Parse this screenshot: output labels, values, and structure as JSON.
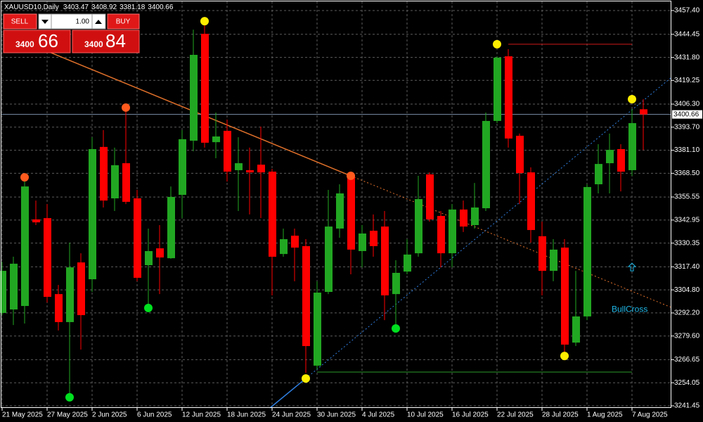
{
  "chart_data": {
    "type": "candlestick",
    "symbol": "XAUUSD10,Daily",
    "categories": [
      "21 May 2025",
      null,
      null,
      null,
      "27 May 2025",
      null,
      null,
      null,
      "2 Jun 2025",
      null,
      null,
      null,
      "6 Jun 2025",
      null,
      null,
      null,
      "12 Jun 2025",
      null,
      null,
      null,
      "18 Jun 2025",
      null,
      null,
      null,
      "24 Jun 2025",
      null,
      null,
      null,
      "30 Jun 2025",
      null,
      null,
      null,
      "4 Jul 2025",
      null,
      null,
      null,
      "10 Jul 2025",
      null,
      null,
      null,
      "16 Jul 2025",
      null,
      null,
      null,
      "22 Jul 2025",
      null,
      null,
      null,
      "28 Jul 2025",
      null,
      null,
      null,
      "1 Aug 2025",
      null,
      null,
      null,
      "7 Aug 2025",
      null
    ],
    "open": [
      3292.2,
      3294.1,
      3296.0,
      3343.3,
      3344.0,
      3302.5,
      3287.2,
      3319.8,
      3310.6,
      3382.9,
      3354.8,
      3374.0,
      3354.8,
      3318.3,
      3327.5,
      3322.1,
      3356.7,
      3386.3,
      3444.7,
      3385.5,
      3391.7,
      3370.2,
      3370.2,
      3373.2,
      3369.4,
      3324.4,
      3334.4,
      3328.7,
      3263.4,
      3303.7,
      3338.3,
      3367.1,
      3326.0,
      3337.1,
      3339.4,
      3302.5,
      3314.8,
      3324.8,
      3367.9,
      3345.2,
      3324.8,
      3348.7,
      3340.2,
      3349.4,
      3397.1,
      3432.4,
      3389.0,
      3369.0,
      3334.1,
      3315.2,
      3327.9,
      3276.0,
      3290.3,
      3362.5,
      3374.0,
      3381.7,
      3370.2,
      3403.47
    ],
    "high": [
      3320.2,
      3322.9,
      3367.1,
      3353.6,
      3351.7,
      3307.5,
      3330.6,
      3324.8,
      3388.2,
      3392.1,
      3382.5,
      3403.6,
      3359.4,
      3338.3,
      3340.2,
      3361.3,
      3392.1,
      3447.0,
      3451.6,
      3401.7,
      3397.8,
      3388.2,
      3382.5,
      3394.0,
      3370.9,
      3338.3,
      3338.3,
      3332.5,
      3309.5,
      3359.4,
      3362.5,
      3369.0,
      3340.2,
      3346.0,
      3347.9,
      3321.0,
      3332.5,
      3367.1,
      3369.0,
      3347.9,
      3351.7,
      3353.6,
      3363.2,
      3401.7,
      3432.4,
      3436.3,
      3390.2,
      3371.7,
      3342.1,
      3332.5,
      3332.5,
      3315.2,
      3362.5,
      3384.4,
      3390.2,
      3384.4,
      3403.6,
      3408.92
    ],
    "low": [
      3291.0,
      3285.6,
      3286.4,
      3340.2,
      3297.9,
      3282.6,
      3246.1,
      3272.2,
      3303.7,
      3349.8,
      3347.9,
      3351.7,
      3309.5,
      3294.9,
      3302.5,
      3321.8,
      3344.0,
      3380.5,
      3382.5,
      3376.7,
      3364.0,
      3347.9,
      3346.0,
      3344.0,
      3301.8,
      3322.9,
      3309.5,
      3259.5,
      3261.4,
      3302.5,
      3333.3,
      3313.3,
      3317.1,
      3322.9,
      3288.3,
      3285.6,
      3313.3,
      3322.9,
      3342.1,
      3317.1,
      3317.1,
      3336.4,
      3338.3,
      3347.9,
      3395.9,
      3382.5,
      3351.7,
      3330.6,
      3301.8,
      3309.5,
      3271.0,
      3274.1,
      3288.3,
      3357.5,
      3357.5,
      3358.6,
      3367.1,
      3381.18
    ],
    "close": [
      3315.2,
      3319.1,
      3361.3,
      3341.7,
      3301.0,
      3287.2,
      3317.1,
      3291.0,
      3381.7,
      3353.6,
      3372.9,
      3352.9,
      3311.4,
      3326.0,
      3322.5,
      3355.6,
      3387.1,
      3433.2,
      3385.2,
      3388.6,
      3369.4,
      3374.0,
      3369.0,
      3369.0,
      3322.9,
      3332.5,
      3327.9,
      3274.1,
      3303.3,
      3339.4,
      3357.5,
      3326.8,
      3335.6,
      3328.7,
      3301.8,
      3314.1,
      3324.1,
      3354.4,
      3343.3,
      3324.8,
      3348.7,
      3339.4,
      3349.8,
      3397.1,
      3431.7,
      3387.5,
      3368.6,
      3337.5,
      3315.2,
      3326.8,
      3274.9,
      3290.3,
      3361.0,
      3373.6,
      3381.3,
      3369.4,
      3395.9,
      3400.66
    ],
    "up_color": "#22a722",
    "down_color": "#ff0000",
    "ylim": [
      3240.3,
      3462.4
    ],
    "yticks": [
      {
        "value": 3457.4,
        "label": "3457.40"
      },
      {
        "value": 3444.45,
        "label": "3444.45"
      },
      {
        "value": 3431.8,
        "label": "3431.80"
      },
      {
        "value": 3419.25,
        "label": "3419.25"
      },
      {
        "value": 3406.3,
        "label": "3406.30"
      },
      {
        "value": 3393.7,
        "label": "3393.70"
      },
      {
        "value": 3381.1,
        "label": "3381.10"
      },
      {
        "value": 3368.5,
        "label": "3368.50"
      },
      {
        "value": 3355.55,
        "label": "3355.55"
      },
      {
        "value": 3342.95,
        "label": "3342.95"
      },
      {
        "value": 3330.35,
        "label": "3330.35"
      },
      {
        "value": 3317.4,
        "label": "3317.40"
      },
      {
        "value": 3304.8,
        "label": "3304.80"
      },
      {
        "value": 3292.2,
        "label": "3292.20"
      },
      {
        "value": 3279.6,
        "label": "3279.60"
      },
      {
        "value": 3266.65,
        "label": "3266.65"
      },
      {
        "value": 3254.05,
        "label": "3254.05"
      },
      {
        "value": 3241.45,
        "label": "3241.45"
      }
    ],
    "grid": true,
    "markers": [
      {
        "index": 18,
        "value": 3451.6,
        "color": "#ffee00"
      },
      {
        "index": 44,
        "value": 3439.0,
        "color": "#ffee00"
      },
      {
        "index": 56,
        "value": 3409.0,
        "color": "#ffee00"
      },
      {
        "index": 27,
        "value": 3256.4,
        "color": "#ffee00"
      },
      {
        "index": 50,
        "value": 3268.7,
        "color": "#ffee00"
      },
      {
        "index": 2,
        "value": 3366.3,
        "color": "#ff5a1e"
      },
      {
        "index": 11,
        "value": 3404.4,
        "color": "#ff5a1e"
      },
      {
        "index": 31,
        "value": 3367.1,
        "color": "#ff5a1e"
      },
      {
        "index": 6,
        "value": 3246.1,
        "color": "#00e020"
      },
      {
        "index": 13,
        "value": 3294.9,
        "color": "#00e020"
      },
      {
        "index": 35,
        "value": 3283.7,
        "color": "#00e020"
      }
    ],
    "trend_lines": [
      {
        "color": "#e0702a",
        "points": [
          [
            5,
            3432.7
          ],
          [
            31,
            3367.1
          ]
        ]
      },
      {
        "color": "#2f7fe0",
        "points": [
          [
            27,
            3256.4
          ],
          [
            57,
            3408.2
          ]
        ]
      }
    ],
    "levels": [
      {
        "color": "#d01818",
        "from": 45,
        "to": 56,
        "value": 3439.0
      },
      {
        "color": "#2a9a2a",
        "from": 28,
        "to": 56,
        "value": 3259.9
      }
    ],
    "signal": {
      "label": "BullCross",
      "index": 56,
      "value": 3317.1,
      "color": "#1fb8e8"
    }
  },
  "trade_panel": {
    "sell": "SELL",
    "buy": "BUY",
    "lots": "1.00",
    "bid_big": "3400",
    "bid_small": "66",
    "ask_big": "3400",
    "ask_small": "84"
  }
}
